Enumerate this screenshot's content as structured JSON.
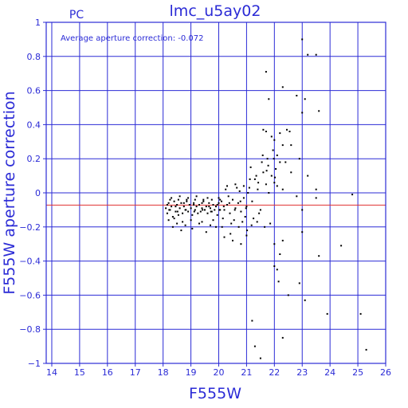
{
  "chart_data": {
    "type": "scatter",
    "title": "lmc_u5ay02",
    "corner_label": "PC",
    "annotation": "Average aperture correction: -0.072",
    "xlabel": "F555W",
    "ylabel": "F555W aperture correction",
    "xlim": [
      13.8,
      26
    ],
    "ylim": [
      -1,
      1
    ],
    "xticks": [
      14,
      15,
      16,
      17,
      18,
      19,
      20,
      21,
      22,
      23,
      24,
      25,
      26
    ],
    "yticks": [
      -1,
      -0.8,
      -0.6,
      -0.4,
      -0.2,
      0,
      0.2,
      0.4,
      0.6,
      0.8,
      1
    ],
    "ytick_labels": [
      "−1",
      "−0.8",
      "−0.6",
      "−0.4",
      "−0.2",
      "0",
      "0.2",
      "0.4",
      "0.6",
      "0.8",
      "1"
    ],
    "grid": true,
    "reference_line": {
      "y": -0.072,
      "color": "#e03030"
    },
    "colors": {
      "axes": "#2b2bd6",
      "points": "#000000",
      "background": "#ffffff"
    },
    "series": [
      {
        "points": [
          [
            18.1,
            -0.09
          ],
          [
            18.15,
            -0.12
          ],
          [
            18.2,
            -0.06
          ],
          [
            18.25,
            -0.1
          ],
          [
            18.3,
            -0.08
          ],
          [
            18.35,
            -0.14
          ],
          [
            18.4,
            -0.05
          ],
          [
            18.45,
            -0.11
          ],
          [
            18.5,
            -0.07
          ],
          [
            18.55,
            -0.13
          ],
          [
            18.6,
            -0.09
          ],
          [
            18.65,
            -0.06
          ],
          [
            18.7,
            -0.12
          ],
          [
            18.75,
            -0.08
          ],
          [
            18.8,
            -0.1
          ],
          [
            18.85,
            -0.05
          ],
          [
            18.9,
            -0.11
          ],
          [
            18.95,
            -0.07
          ],
          [
            19.0,
            -0.09
          ],
          [
            19.05,
            -0.13
          ],
          [
            19.1,
            -0.06
          ],
          [
            19.15,
            -0.1
          ],
          [
            19.2,
            -0.08
          ],
          [
            19.25,
            -0.12
          ],
          [
            19.3,
            -0.07
          ],
          [
            19.35,
            -0.11
          ],
          [
            19.4,
            -0.09
          ],
          [
            19.45,
            -0.05
          ],
          [
            19.5,
            -0.1
          ],
          [
            19.55,
            -0.08
          ],
          [
            19.6,
            -0.12
          ],
          [
            19.65,
            -0.06
          ],
          [
            19.7,
            -0.09
          ],
          [
            19.75,
            -0.11
          ],
          [
            19.8,
            -0.07
          ],
          [
            19.85,
            -0.1
          ],
          [
            19.9,
            -0.08
          ],
          [
            19.95,
            -0.13
          ],
          [
            20.0,
            -0.06
          ],
          [
            20.05,
            -0.1
          ],
          [
            18.2,
            -0.16
          ],
          [
            18.3,
            -0.03
          ],
          [
            18.4,
            -0.15
          ],
          [
            18.6,
            -0.02
          ],
          [
            18.7,
            -0.17
          ],
          [
            18.9,
            -0.03
          ],
          [
            19.0,
            -0.16
          ],
          [
            19.2,
            -0.02
          ],
          [
            19.4,
            -0.17
          ],
          [
            19.6,
            -0.03
          ],
          [
            19.8,
            -0.16
          ],
          [
            20.0,
            -0.03
          ],
          [
            18.5,
            -0.18
          ],
          [
            18.8,
            -0.19
          ],
          [
            19.3,
            -0.18
          ],
          [
            19.7,
            -0.19
          ],
          [
            18.25,
            -0.04
          ],
          [
            18.55,
            -0.04
          ],
          [
            18.85,
            -0.04
          ],
          [
            19.15,
            -0.04
          ],
          [
            19.45,
            -0.04
          ],
          [
            19.75,
            -0.04
          ],
          [
            20.05,
            -0.04
          ],
          [
            18.35,
            -0.2
          ],
          [
            18.65,
            -0.22
          ],
          [
            19.05,
            -0.21
          ],
          [
            19.55,
            -0.23
          ],
          [
            19.9,
            -0.2
          ],
          [
            18.15,
            -0.07
          ],
          [
            18.45,
            -0.08
          ],
          [
            18.75,
            -0.06
          ],
          [
            19.1,
            -0.07
          ],
          [
            19.4,
            -0.06
          ],
          [
            19.65,
            -0.08
          ],
          [
            19.95,
            -0.07
          ],
          [
            18.22,
            -0.1
          ],
          [
            18.52,
            -0.11
          ],
          [
            18.82,
            -0.1
          ],
          [
            19.12,
            -0.11
          ],
          [
            19.42,
            -0.1
          ],
          [
            19.72,
            -0.11
          ],
          [
            20.02,
            -0.1
          ],
          [
            20.1,
            -0.05
          ],
          [
            20.2,
            -0.1
          ],
          [
            20.3,
            -0.07
          ],
          [
            20.4,
            -0.12
          ],
          [
            20.5,
            -0.04
          ],
          [
            20.6,
            -0.09
          ],
          [
            20.7,
            -0.06
          ],
          [
            20.8,
            -0.11
          ],
          [
            20.9,
            -0.03
          ],
          [
            21.0,
            -0.08
          ],
          [
            20.15,
            -0.15
          ],
          [
            20.35,
            -0.02
          ],
          [
            20.55,
            -0.16
          ],
          [
            20.75,
            0.01
          ],
          [
            20.95,
            -0.14
          ],
          [
            20.25,
            0.02
          ],
          [
            20.45,
            -0.18
          ],
          [
            20.65,
            0.03
          ],
          [
            20.85,
            -0.17
          ],
          [
            21.05,
            0.0
          ],
          [
            20.12,
            -0.2
          ],
          [
            20.42,
            -0.24
          ],
          [
            20.72,
            -0.2
          ],
          [
            21.02,
            -0.22
          ],
          [
            20.3,
            0.04
          ],
          [
            20.6,
            0.05
          ],
          [
            20.9,
            0.04
          ],
          [
            20.2,
            -0.26
          ],
          [
            20.5,
            -0.28
          ],
          [
            20.8,
            -0.3
          ],
          [
            21.0,
            -0.25
          ],
          [
            20.18,
            -0.08
          ],
          [
            20.38,
            -0.06
          ],
          [
            20.58,
            -0.1
          ],
          [
            20.78,
            -0.05
          ],
          [
            20.98,
            -0.09
          ],
          [
            21.1,
            0.03
          ],
          [
            21.2,
            -0.05
          ],
          [
            21.3,
            0.08
          ],
          [
            21.4,
            0.02
          ],
          [
            21.5,
            -0.1
          ],
          [
            21.6,
            0.12
          ],
          [
            21.7,
            0.05
          ],
          [
            21.8,
            0.0
          ],
          [
            21.9,
            0.1
          ],
          [
            22.0,
            0.06
          ],
          [
            21.15,
            0.15
          ],
          [
            21.35,
            0.1
          ],
          [
            21.55,
            0.18
          ],
          [
            21.75,
            0.2
          ],
          [
            21.95,
            0.25
          ],
          [
            21.25,
            -0.15
          ],
          [
            21.45,
            -0.12
          ],
          [
            21.65,
            -0.2
          ],
          [
            21.85,
            -0.18
          ],
          [
            22.05,
            0.14
          ],
          [
            21.12,
            0.08
          ],
          [
            21.42,
            0.06
          ],
          [
            21.72,
            0.13
          ],
          [
            22.02,
            0.09
          ],
          [
            21.18,
            -0.19
          ],
          [
            21.38,
            -0.17
          ],
          [
            21.58,
            0.22
          ],
          [
            21.78,
            0.16
          ],
          [
            21.98,
            0.2
          ],
          [
            22.1,
            0.04
          ],
          [
            22.2,
            0.18
          ],
          [
            22.3,
            0.02
          ],
          [
            21.6,
            0.37
          ],
          [
            21.7,
            0.36
          ],
          [
            21.9,
            0.33
          ],
          [
            22.0,
            0.31
          ],
          [
            22.2,
            0.35
          ],
          [
            22.3,
            0.28
          ],
          [
            22.45,
            0.37
          ],
          [
            22.55,
            0.36
          ],
          [
            22.6,
            0.28
          ],
          [
            21.8,
            0.55
          ],
          [
            22.3,
            0.62
          ],
          [
            21.7,
            0.71
          ],
          [
            22.8,
            0.57
          ],
          [
            23.0,
            0.47
          ],
          [
            23.1,
            0.55
          ],
          [
            22.1,
            0.22
          ],
          [
            22.4,
            0.18
          ],
          [
            22.6,
            0.12
          ],
          [
            22.9,
            0.2
          ],
          [
            23.2,
            0.1
          ],
          [
            23.5,
            0.02
          ],
          [
            22.0,
            -0.3
          ],
          [
            22.1,
            -0.45
          ],
          [
            22.2,
            -0.36
          ],
          [
            22.3,
            -0.28
          ],
          [
            22.9,
            -0.53
          ],
          [
            23.0,
            -0.23
          ],
          [
            23.6,
            -0.37
          ],
          [
            24.4,
            -0.31
          ],
          [
            21.5,
            -0.97
          ],
          [
            21.3,
            -0.9
          ],
          [
            21.2,
            -0.75
          ],
          [
            22.3,
            -0.85
          ],
          [
            23.1,
            -0.63
          ],
          [
            23.9,
            -0.71
          ],
          [
            25.1,
            -0.71
          ],
          [
            25.3,
            -0.92
          ],
          [
            23.0,
            0.9
          ],
          [
            23.2,
            0.81
          ],
          [
            23.5,
            0.81
          ],
          [
            23.6,
            0.48
          ],
          [
            24.8,
            -0.01
          ],
          [
            23.5,
            -0.03
          ],
          [
            22.8,
            -0.02
          ],
          [
            23.0,
            -0.1
          ],
          [
            22.0,
            -0.43
          ],
          [
            22.15,
            -0.52
          ],
          [
            22.5,
            -0.6
          ]
        ]
      }
    ]
  }
}
